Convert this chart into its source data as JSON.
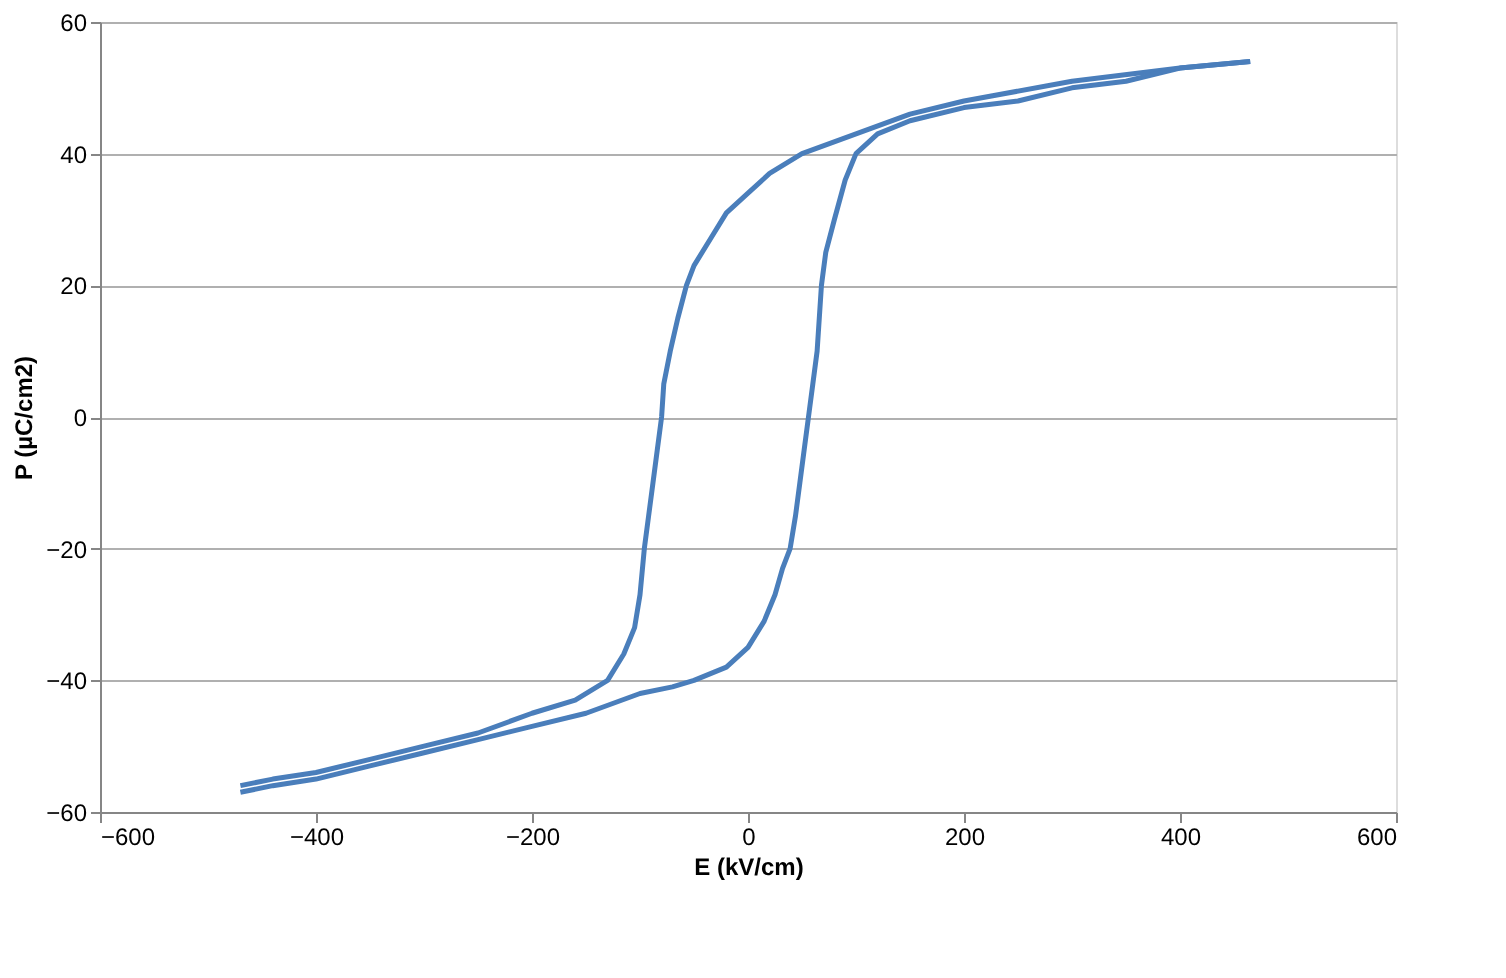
{
  "chart_data": {
    "type": "line",
    "xlabel": "E (kV/cm)",
    "ylabel": "P (µC/cm2)",
    "xlim": [
      -600,
      600
    ],
    "xticks": [
      -600,
      -400,
      -200,
      0,
      200,
      400,
      600
    ],
    "ylim": [
      -60,
      60
    ],
    "yticks": [
      -60,
      -40,
      -20,
      0,
      20,
      40,
      60
    ],
    "grid": "y",
    "marker": "none",
    "line_style": "solid",
    "series": [
      {
        "color": "#4a7ebb",
        "x": [
          -470,
          -440,
          -400,
          -350,
          -300,
          -250,
          -200,
          -160,
          -130,
          -115,
          -105,
          -100,
          -96,
          -92,
          -88,
          -84,
          -80,
          -78,
          -72,
          -65,
          -57,
          -50,
          -35,
          -20,
          0,
          20,
          50,
          100,
          150,
          200,
          300,
          400,
          465
        ],
        "values": [
          -56,
          -55,
          -54,
          -52,
          -50,
          -48,
          -45,
          -43,
          -40,
          -36,
          -32,
          -27,
          -20,
          -15,
          -10,
          -5,
          0,
          5,
          10,
          15,
          20,
          23,
          27,
          31,
          34,
          37,
          40,
          43,
          46,
          48,
          51,
          53,
          54
        ]
      },
      {
        "color": "#4a7ebb",
        "x": [
          -470,
          -440,
          -400,
          -350,
          -300,
          -250,
          -200,
          -150,
          -100,
          -70,
          -50,
          -20,
          0,
          15,
          25,
          32,
          39,
          44,
          48,
          52,
          56,
          60,
          64,
          68,
          72,
          80,
          90,
          100,
          120,
          150,
          200,
          250,
          300,
          350,
          400,
          465
        ],
        "values": [
          -57,
          -56,
          -55,
          -53,
          -51,
          -49,
          -47,
          -45,
          -42,
          -41,
          -40,
          -38,
          -35,
          -31,
          -27,
          -23,
          -20,
          -15,
          -10,
          -5,
          0,
          5,
          10,
          20,
          25,
          30,
          36,
          40,
          43,
          45,
          47,
          48,
          50,
          51,
          53,
          54
        ]
      }
    ]
  }
}
